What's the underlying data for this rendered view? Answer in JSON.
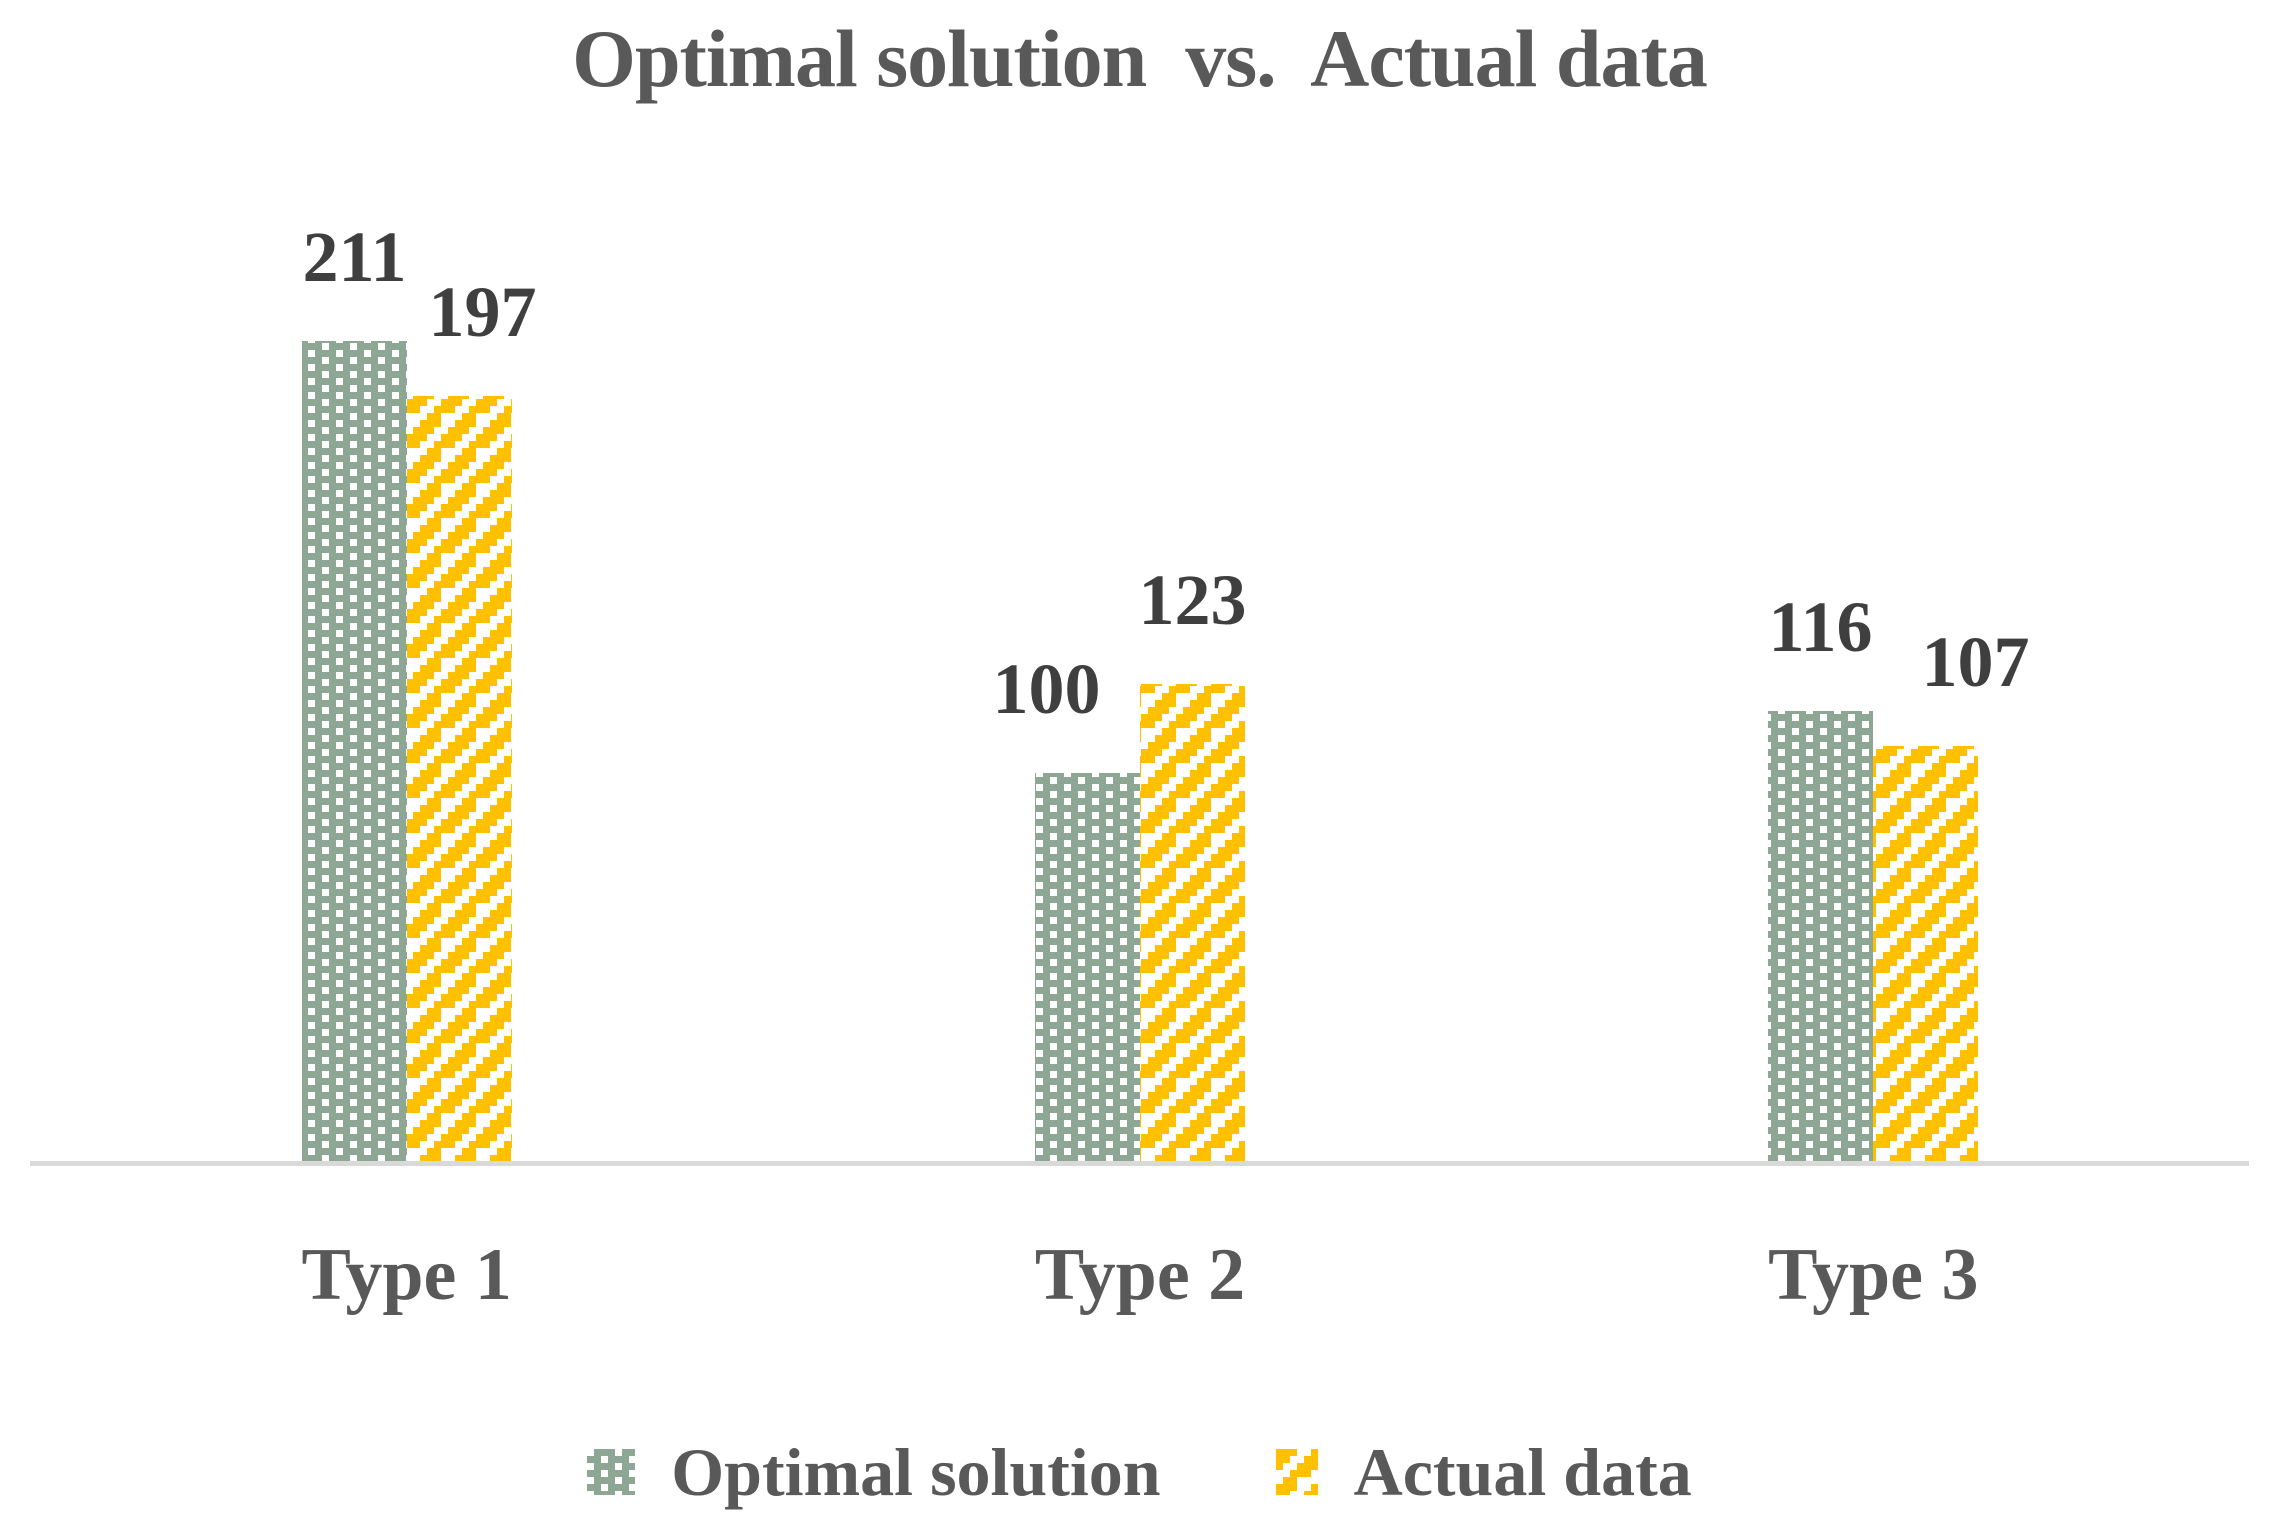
{
  "chart_data": {
    "type": "bar",
    "title": "Optimal solution  vs.  Actual data",
    "categories": [
      "Type 1",
      "Type 2",
      "Type 3"
    ],
    "series": [
      {
        "name": "Optimal solution",
        "values": [
          211,
          100,
          116
        ],
        "color": "#8EA794",
        "pattern": "checker"
      },
      {
        "name": "Actual data",
        "values": [
          197,
          123,
          107
        ],
        "color": "#FFC000",
        "pattern": "diagonal-stripes"
      }
    ],
    "data_labels_shown": true,
    "grid": false,
    "y_axis_shown": false,
    "legend_position": "bottom"
  },
  "colors": {
    "optimal_fill": "#8EA794",
    "actual_fill": "#FFC000",
    "pattern_background": "#FFFFFF",
    "title_text": "#595959",
    "category_text": "#595959",
    "legend_text": "#595959",
    "value_label_text": "#3F3F3F",
    "axis_line": "#D9D9D9"
  }
}
